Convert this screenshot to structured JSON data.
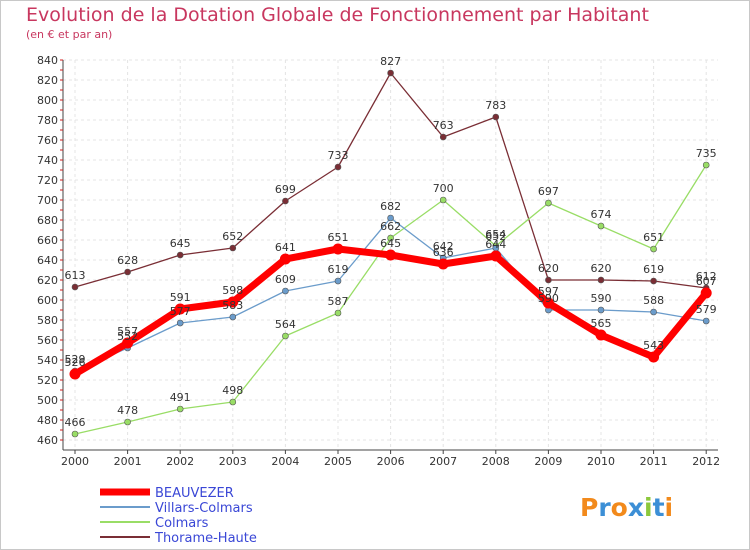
{
  "chart_data": {
    "type": "line",
    "title": "Evolution de la Dotation Globale de Fonctionnement par Habitant",
    "subtitle": "(en € et par an)",
    "x": [
      "2000",
      "2001",
      "2002",
      "2003",
      "2004",
      "2005",
      "2006",
      "2007",
      "2008",
      "2009",
      "2010",
      "2011",
      "2012"
    ],
    "ylim": [
      460,
      840
    ],
    "yticks": [
      460,
      480,
      500,
      520,
      540,
      560,
      580,
      600,
      620,
      640,
      660,
      680,
      700,
      720,
      740,
      760,
      780,
      800,
      820,
      840
    ],
    "grid": true,
    "legend_position": "bottom-left",
    "series": [
      {
        "name": "BEAUVEZER",
        "color": "#ff0000",
        "values": [
          526,
          557,
          591,
          598,
          641,
          651,
          645,
          636,
          644,
          597,
          565,
          543,
          607
        ]
      },
      {
        "name": "Villars-Colmars",
        "color": "#6b9ccb",
        "values": [
          529,
          552,
          577,
          583,
          609,
          619,
          682,
          642,
          652,
          590,
          590,
          588,
          579
        ]
      },
      {
        "name": "Colmars",
        "color": "#99dd66",
        "values": [
          466,
          478,
          491,
          498,
          564,
          587,
          662,
          700,
          654,
          697,
          674,
          651,
          735
        ]
      },
      {
        "name": "Thorame-Haute",
        "color": "#7a2e35",
        "values": [
          613,
          628,
          645,
          652,
          699,
          733,
          827,
          763,
          783,
          620,
          620,
          619,
          612
        ]
      }
    ]
  },
  "logo": {
    "text": "Proxiti"
  }
}
